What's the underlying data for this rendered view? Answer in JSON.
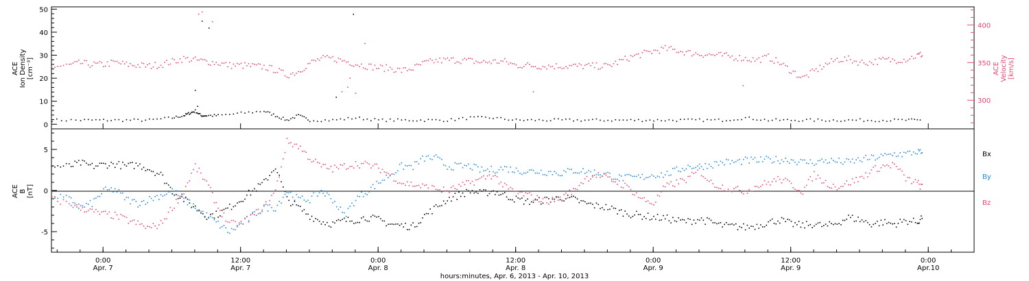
{
  "colors": {
    "black": "#000000",
    "pink": "#e8456f",
    "blue": "#1f86e0"
  },
  "chart_data": [
    {
      "type": "scatter",
      "panel": "top",
      "ylabel_left": [
        "ACE",
        "Ion Density",
        "[cm⁻³]"
      ],
      "ylabel_right": [
        "ACE",
        "Velocity",
        "[km/s]"
      ],
      "ylim_left": [
        -2,
        51
      ],
      "ylim_right": [
        262,
        424
      ],
      "yticks_left": [
        0,
        10,
        20,
        30,
        40,
        50
      ],
      "yticks_right": [
        300,
        350,
        400
      ],
      "series": [
        {
          "axis": "left",
          "color": "black",
          "x": [
            -4.5,
            -2,
            0,
            2,
            4,
            6,
            7,
            7.5,
            8,
            8.5,
            9,
            10,
            12,
            14,
            15,
            16,
            17,
            18,
            20,
            22,
            24,
            26,
            28,
            30,
            32,
            34,
            36,
            38,
            40,
            42,
            44,
            46,
            48,
            50,
            52,
            54,
            56,
            58,
            60,
            62,
            64,
            66,
            68,
            70,
            71.5
          ],
          "y": [
            2,
            2,
            2,
            2,
            2,
            3,
            4,
            5,
            6,
            4,
            4,
            4,
            5,
            6,
            4,
            2,
            4,
            2,
            2,
            3,
            2,
            2,
            2,
            2,
            3,
            3,
            2,
            2,
            2,
            2,
            2,
            2,
            2,
            2,
            2,
            2,
            3,
            2,
            2,
            2,
            2,
            2,
            2,
            2,
            2
          ]
        },
        {
          "axis": "right",
          "color": "pink",
          "x": [
            -4.5,
            -3,
            -2,
            -1,
            0,
            1,
            2,
            3,
            4,
            5,
            6,
            7,
            8,
            9,
            10,
            11,
            12,
            13,
            14,
            15,
            16,
            17,
            18,
            19,
            20,
            21,
            22,
            23,
            24,
            25,
            26,
            27,
            28,
            29,
            30,
            31,
            32,
            33,
            34,
            35,
            36,
            37,
            38,
            39,
            40,
            41,
            42,
            43,
            44,
            45,
            46,
            47,
            48,
            49,
            50,
            51,
            52,
            53,
            54,
            55,
            56,
            57,
            58,
            59,
            60,
            61,
            62,
            63,
            64,
            65,
            66,
            67,
            68,
            69,
            70,
            71,
            71.5
          ],
          "y": [
            345,
            347,
            350,
            348,
            348,
            351,
            348,
            347,
            346,
            348,
            352,
            356,
            354,
            352,
            350,
            347,
            347,
            346,
            345,
            341,
            334,
            339,
            350,
            356,
            356,
            353,
            349,
            346,
            344,
            343,
            340,
            343,
            350,
            353,
            354,
            354,
            353,
            351,
            352,
            352,
            347,
            347,
            346,
            346,
            346,
            346,
            346,
            346,
            346,
            352,
            358,
            362,
            366,
            369,
            367,
            364,
            362,
            361,
            360,
            358,
            356,
            354,
            358,
            350,
            340,
            330,
            339,
            348,
            355,
            355,
            351,
            351,
            354,
            354,
            355,
            360,
            362
          ]
        }
      ],
      "scattered_outliers": [
        {
          "axis": "left",
          "color": "black",
          "x": [
            8,
            8.2,
            21.8,
            20.3,
            9.2,
            8.6
          ],
          "y": [
            15,
            8,
            48,
            12,
            42,
            45
          ]
        },
        {
          "axis": "right",
          "color": "pink",
          "x": [
            8.3,
            8.6,
            9.5,
            20.8,
            21.3,
            21.5,
            22,
            22.8,
            55.8,
            37.5
          ],
          "y": [
            415,
            418,
            405,
            312,
            318,
            330,
            310,
            376,
            320,
            312
          ]
        }
      ]
    },
    {
      "type": "scatter",
      "panel": "bottom",
      "ylabel": [
        "ACE",
        "B",
        "[nT]"
      ],
      "ylim": [
        -7.5,
        7.5
      ],
      "yticks": [
        -5,
        0,
        5
      ],
      "zero_line": true,
      "legend": [
        "Bx",
        "By",
        "Bz"
      ],
      "series": [
        {
          "name": "Bx",
          "color": "black",
          "x": [
            -4.5,
            -3,
            -2,
            -1,
            0,
            1,
            2,
            3,
            4,
            5,
            6,
            7,
            8,
            9,
            10,
            11,
            12,
            13,
            14,
            15,
            16,
            17,
            18,
            19,
            20,
            21,
            22,
            23,
            24,
            25,
            26,
            27,
            28,
            29,
            30,
            31,
            32,
            33,
            34,
            35,
            36,
            37,
            38,
            39,
            40,
            41,
            42,
            43,
            44,
            45,
            46,
            47,
            48,
            49,
            50,
            51,
            52,
            53,
            54,
            55,
            56,
            57,
            58,
            59,
            60,
            61,
            62,
            63,
            64,
            65,
            66,
            67,
            68,
            69,
            70,
            71,
            71.5
          ],
          "y": [
            3,
            3,
            3.4,
            3,
            3.2,
            3.3,
            3,
            3.2,
            2.7,
            2,
            0,
            -1,
            -2,
            -3,
            -2.8,
            -2,
            -1,
            0,
            1,
            3,
            -1,
            -2,
            -3,
            -3.7,
            -4,
            -3.6,
            -3.5,
            -3.2,
            -3.5,
            -4,
            -4.2,
            -4.3,
            -3,
            -2,
            -1,
            -0.5,
            0,
            -0.3,
            0,
            -0.5,
            -1,
            -1.3,
            -1.2,
            -1,
            -0.8,
            -1,
            -1.5,
            -1.8,
            -2,
            -2.5,
            -2.8,
            -3,
            -3.2,
            -3.3,
            -3.6,
            -3.7,
            -3.4,
            -3.8,
            -4.2,
            -4.3,
            -4.4,
            -4.2,
            -3.8,
            -3.5,
            -4,
            -4.2,
            -4,
            -4.3,
            -3.9,
            -3.2,
            -3.5,
            -4,
            -3.8,
            -4,
            -3.6,
            -3.8,
            -3
          ]
        },
        {
          "name": "By",
          "color": "blue",
          "x": [
            -4.5,
            -3,
            -2,
            -1,
            0,
            1,
            2,
            3,
            4,
            5,
            6,
            7,
            8,
            9,
            10,
            11,
            12,
            13,
            14,
            15,
            16,
            17,
            18,
            19,
            20,
            21,
            22,
            23,
            24,
            25,
            26,
            27,
            28,
            29,
            30,
            31,
            32,
            33,
            34,
            35,
            36,
            37,
            38,
            39,
            40,
            41,
            42,
            43,
            44,
            45,
            46,
            47,
            48,
            49,
            50,
            51,
            52,
            53,
            54,
            55,
            56,
            57,
            58,
            59,
            60,
            61,
            62,
            63,
            64,
            65,
            66,
            67,
            68,
            69,
            70,
            71,
            71.5
          ],
          "y": [
            -0.5,
            -1,
            -2,
            -1.5,
            0,
            0.2,
            -1,
            -1.5,
            -1,
            -0.5,
            0,
            -1,
            -2,
            -3,
            -4,
            -5,
            -4,
            -3,
            -2,
            -2,
            0,
            -1,
            -1,
            0,
            -1,
            -3,
            -1,
            0,
            1,
            2,
            3,
            3,
            4,
            4,
            3,
            3,
            3,
            2.5,
            2.6,
            2.8,
            2.5,
            2.4,
            2.4,
            2.3,
            2.2,
            2.5,
            2.4,
            2.2,
            2.0,
            1.6,
            1.6,
            1.7,
            2,
            2,
            2.5,
            3,
            3,
            3.2,
            3.5,
            3.5,
            3.7,
            3.7,
            3.8,
            3.8,
            3.8,
            3.5,
            3.5,
            3.7,
            3.6,
            3.5,
            3.8,
            4,
            4.2,
            4.5,
            4.5,
            4.8,
            4.5
          ]
        },
        {
          "name": "Bz",
          "color": "pink",
          "x": [
            -4.5,
            -3,
            -2,
            -1,
            0,
            1,
            2,
            3,
            4,
            5,
            6,
            7,
            8,
            9,
            10,
            11,
            12,
            13,
            14,
            15,
            16,
            17,
            18,
            19,
            20,
            21,
            22,
            23,
            24,
            25,
            26,
            27,
            28,
            29,
            30,
            31,
            32,
            33,
            34,
            35,
            36,
            37,
            38,
            39,
            40,
            41,
            42,
            43,
            44,
            45,
            46,
            47,
            48,
            49,
            50,
            51,
            52,
            53,
            54,
            55,
            56,
            57,
            58,
            59,
            60,
            61,
            62,
            63,
            64,
            65,
            66,
            67,
            68,
            69,
            70,
            71,
            71.5
          ],
          "y": [
            -1,
            -1.5,
            -2,
            -2.5,
            -2.8,
            -3,
            -3.5,
            -4,
            -4.5,
            -4,
            -2,
            0,
            3,
            1,
            -2,
            -4,
            -4,
            -3,
            -2,
            0,
            6,
            5.5,
            4,
            3,
            2.7,
            3,
            3.3,
            3.2,
            2.8,
            2,
            1,
            0.8,
            0.5,
            0.3,
            0,
            0.5,
            1,
            1.5,
            2,
            0.5,
            -0.2,
            -0.5,
            -1,
            -1.2,
            -0.8,
            0,
            1.5,
            2,
            1.5,
            1,
            0.2,
            -1,
            -1.5,
            0.5,
            1,
            1.5,
            2.5,
            1,
            0.5,
            0.2,
            0,
            0.6,
            1,
            1.5,
            0.8,
            0,
            2,
            1,
            0.5,
            1,
            1.5,
            2.5,
            3,
            3.2,
            1.5,
            1,
            0.3
          ]
        }
      ]
    }
  ],
  "x_axis": {
    "range_hours": [
      -4.5,
      76
    ],
    "ticks": [
      {
        "h": 0,
        "time": "0:00",
        "date": "Apr. 7"
      },
      {
        "h": 12,
        "time": "12:00",
        "date": "Apr. 7"
      },
      {
        "h": 24,
        "time": "0:00",
        "date": "Apr. 8"
      },
      {
        "h": 36,
        "time": "12:00",
        "date": "Apr. 8"
      },
      {
        "h": 48,
        "time": "0:00",
        "date": "Apr. 9"
      },
      {
        "h": 60,
        "time": "12:00",
        "date": "Apr. 9"
      },
      {
        "h": 72,
        "time": "0:00",
        "date": "Apr.10"
      }
    ],
    "title": "hours:minutes, Apr.  6, 2013 - Apr. 10, 2013"
  }
}
